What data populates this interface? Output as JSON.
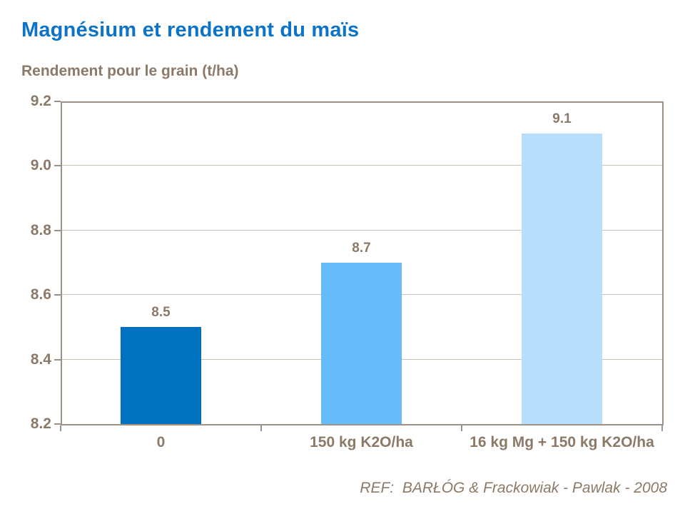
{
  "title": "Magnésium et rendement du maïs",
  "subtitle": "Rendement pour le grain (t/ha)",
  "footer": {
    "ref_text": "REF:  BARŁÓG & Frackowiak - Pawlak - 2008"
  },
  "colors": {
    "title_blue": "#0C74C8",
    "text_taupe": "#8C7A68",
    "axis_border": "#9C9184",
    "gridline": "#C9C1B5",
    "background": "#FFFFFF"
  },
  "chart_data": {
    "type": "bar",
    "title": "Magnésium et rendement du maïs",
    "subtitle": "Rendement pour le grain (t/ha)",
    "categories": [
      "0",
      "150 kg K2O/ha",
      "16 kg Mg + 150 kg K2O/ha"
    ],
    "values": [
      8.5,
      8.7,
      9.1
    ],
    "value_labels": [
      "8.5",
      "8.7",
      "9.1"
    ],
    "bar_colors": [
      "#0071BF",
      "#66BBF8",
      "#B9DEFB"
    ],
    "xlabel": "",
    "ylabel": "Rendement pour le grain (t/ha)",
    "ylim": [
      8.2,
      9.2
    ],
    "yticks": [
      8.2,
      8.4,
      8.6,
      8.8,
      9.0,
      9.2
    ],
    "ytick_labels": [
      "8.2",
      "8.4",
      "8.6",
      "8.8",
      "9.0",
      "9.2"
    ],
    "grid": true,
    "legend": false,
    "annotation": "REF:  BARŁÓG & Frackowiak - Pawlak - 2008"
  }
}
